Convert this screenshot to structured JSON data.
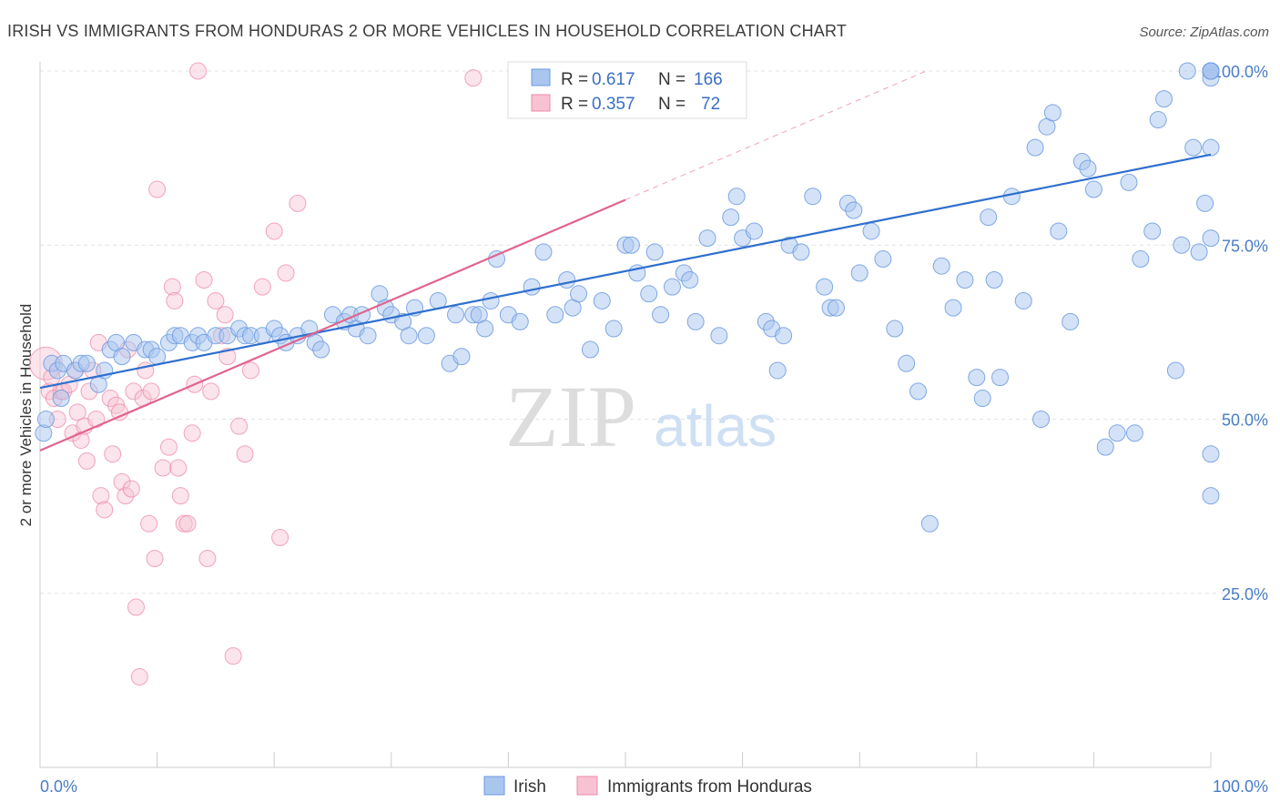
{
  "title": "IRISH VS IMMIGRANTS FROM HONDURAS 2 OR MORE VEHICLES IN HOUSEHOLD CORRELATION CHART",
  "source": "Source: ZipAtlas.com",
  "watermark": {
    "zip": "ZIP",
    "atlas": "atlas"
  },
  "y_axis_label": "2 or more Vehicles in Household",
  "legend_stats": [
    {
      "r_label": "R =",
      "r_value": "0.617",
      "n_label": "N =",
      "n_value": "166",
      "color": "#a9c6ef"
    },
    {
      "r_label": "R =",
      "r_value": "0.357",
      "n_label": "N =",
      "n_value": "72",
      "color": "#f7b9cc"
    }
  ],
  "bottom_legend": [
    "Irish",
    "Immigrants from Honduras"
  ],
  "chart_data": {
    "type": "scatter",
    "xlim": [
      0,
      100
    ],
    "ylim": [
      0,
      100
    ],
    "x_tick_labels": [
      "0.0%",
      "100.0%"
    ],
    "y_tick_labels": [
      "100.0%",
      "75.0%",
      "50.0%",
      "25.0%"
    ],
    "y_tick_values": [
      100,
      75,
      50,
      25
    ],
    "grid": true,
    "colors": {
      "irish": "#6b9be0",
      "irish_fill": "#a9c6ef",
      "honduras": "#ee88a8",
      "honduras_fill": "#f7c3d3",
      "irish_line": "#2e6fce",
      "honduras_line": "#e0648e"
    },
    "series": [
      {
        "name": "Irish",
        "trend": {
          "x": [
            0,
            100
          ],
          "y": [
            54.5,
            88
          ]
        },
        "points": [
          [
            0.3,
            48
          ],
          [
            0.5,
            50
          ],
          [
            1,
            58
          ],
          [
            1.5,
            57
          ],
          [
            1.8,
            53
          ],
          [
            2,
            58
          ],
          [
            3,
            57
          ],
          [
            3.5,
            58
          ],
          [
            4,
            58
          ],
          [
            5,
            55
          ],
          [
            5.5,
            57
          ],
          [
            6,
            60
          ],
          [
            6.5,
            61
          ],
          [
            7,
            59
          ],
          [
            8,
            61
          ],
          [
            9,
            60
          ],
          [
            9.5,
            60
          ],
          [
            10,
            59
          ],
          [
            11,
            61
          ],
          [
            11.5,
            62
          ],
          [
            12,
            62
          ],
          [
            13,
            61
          ],
          [
            13.5,
            62
          ],
          [
            14,
            61
          ],
          [
            15,
            62
          ],
          [
            16,
            62
          ],
          [
            17,
            63
          ],
          [
            17.5,
            62
          ],
          [
            18,
            62
          ],
          [
            19,
            62
          ],
          [
            20,
            63
          ],
          [
            20.5,
            62
          ],
          [
            21,
            61
          ],
          [
            22,
            62
          ],
          [
            23,
            63
          ],
          [
            23.5,
            61
          ],
          [
            24,
            60
          ],
          [
            25,
            65
          ],
          [
            26,
            64
          ],
          [
            26.5,
            65
          ],
          [
            27,
            63
          ],
          [
            27.5,
            65
          ],
          [
            28,
            62
          ],
          [
            29,
            68
          ],
          [
            29.5,
            66
          ],
          [
            30,
            65
          ],
          [
            31,
            64
          ],
          [
            31.5,
            62
          ],
          [
            32,
            66
          ],
          [
            33,
            62
          ],
          [
            34,
            67
          ],
          [
            35,
            58
          ],
          [
            35.5,
            65
          ],
          [
            36,
            59
          ],
          [
            37,
            65
          ],
          [
            37.5,
            65
          ],
          [
            38,
            63
          ],
          [
            38.5,
            67
          ],
          [
            39,
            73
          ],
          [
            40,
            65
          ],
          [
            41,
            64
          ],
          [
            42,
            69
          ],
          [
            43,
            74
          ],
          [
            44,
            65
          ],
          [
            45,
            70
          ],
          [
            45.5,
            66
          ],
          [
            46,
            68
          ],
          [
            47,
            60
          ],
          [
            48,
            67
          ],
          [
            49,
            63
          ],
          [
            50,
            75
          ],
          [
            50.5,
            75
          ],
          [
            51,
            71
          ],
          [
            52,
            68
          ],
          [
            52.5,
            74
          ],
          [
            53,
            65
          ],
          [
            54,
            69
          ],
          [
            55,
            71
          ],
          [
            55.5,
            70
          ],
          [
            56,
            64
          ],
          [
            57,
            76
          ],
          [
            58,
            62
          ],
          [
            59,
            79
          ],
          [
            59.5,
            82
          ],
          [
            60,
            76
          ],
          [
            61,
            77
          ],
          [
            62,
            64
          ],
          [
            62.5,
            63
          ],
          [
            63,
            57
          ],
          [
            63.5,
            62
          ],
          [
            64,
            75
          ],
          [
            65,
            74
          ],
          [
            66,
            82
          ],
          [
            67,
            69
          ],
          [
            67.5,
            66
          ],
          [
            68,
            66
          ],
          [
            69,
            81
          ],
          [
            69.5,
            80
          ],
          [
            70,
            71
          ],
          [
            71,
            77
          ],
          [
            72,
            73
          ],
          [
            73,
            63
          ],
          [
            74,
            58
          ],
          [
            75,
            54
          ],
          [
            76,
            35
          ],
          [
            77,
            72
          ],
          [
            78,
            66
          ],
          [
            79,
            70
          ],
          [
            80,
            56
          ],
          [
            80.5,
            53
          ],
          [
            81,
            79
          ],
          [
            81.5,
            70
          ],
          [
            82,
            56
          ],
          [
            83,
            82
          ],
          [
            84,
            67
          ],
          [
            85,
            89
          ],
          [
            85.5,
            50
          ],
          [
            86,
            92
          ],
          [
            86.5,
            94
          ],
          [
            87,
            77
          ],
          [
            88,
            64
          ],
          [
            89,
            87
          ],
          [
            89.5,
            86
          ],
          [
            90,
            83
          ],
          [
            91,
            46
          ],
          [
            92,
            48
          ],
          [
            93,
            84
          ],
          [
            93.5,
            48
          ],
          [
            94,
            73
          ],
          [
            95,
            77
          ],
          [
            95.5,
            93
          ],
          [
            96,
            96
          ],
          [
            97,
            57
          ],
          [
            97.5,
            75
          ],
          [
            98,
            100
          ],
          [
            98.5,
            89
          ],
          [
            99,
            74
          ],
          [
            99.5,
            81
          ],
          [
            100,
            100
          ],
          [
            100,
            76
          ],
          [
            100,
            100
          ],
          [
            100,
            89
          ],
          [
            100,
            45
          ],
          [
            100,
            39
          ],
          [
            100,
            100
          ],
          [
            100,
            100
          ],
          [
            100,
            100
          ],
          [
            100,
            99
          ],
          [
            100,
            100
          ],
          [
            100,
            100
          ]
        ]
      },
      {
        "name": "Immigrants from Honduras",
        "trend": {
          "x": [
            0,
            50
          ],
          "y": [
            45.5,
            81.5
          ]
        },
        "points": [
          [
            0.5,
            58
          ],
          [
            0.8,
            54
          ],
          [
            1,
            56
          ],
          [
            1.2,
            53
          ],
          [
            1.5,
            50
          ],
          [
            1.8,
            54
          ],
          [
            2,
            54
          ],
          [
            2.5,
            55
          ],
          [
            2.8,
            48
          ],
          [
            3,
            57
          ],
          [
            3.2,
            51
          ],
          [
            3.5,
            47
          ],
          [
            3.8,
            49
          ],
          [
            4,
            44
          ],
          [
            4.2,
            54
          ],
          [
            4.5,
            57
          ],
          [
            4.8,
            50
          ],
          [
            5,
            61
          ],
          [
            5.2,
            39
          ],
          [
            5.5,
            37
          ],
          [
            6,
            53
          ],
          [
            6.2,
            45
          ],
          [
            6.5,
            52
          ],
          [
            6.8,
            51
          ],
          [
            7,
            41
          ],
          [
            7.3,
            39
          ],
          [
            7.5,
            60
          ],
          [
            7.8,
            40
          ],
          [
            8,
            54
          ],
          [
            8.2,
            23
          ],
          [
            8.5,
            13
          ],
          [
            8.8,
            53
          ],
          [
            9,
            57
          ],
          [
            9.3,
            35
          ],
          [
            9.5,
            54
          ],
          [
            9.8,
            30
          ],
          [
            10,
            83
          ],
          [
            10.5,
            43
          ],
          [
            11,
            46
          ],
          [
            11.3,
            69
          ],
          [
            11.5,
            67
          ],
          [
            11.8,
            43
          ],
          [
            12,
            39
          ],
          [
            12.3,
            35
          ],
          [
            12.6,
            35
          ],
          [
            13,
            48
          ],
          [
            13.2,
            55
          ],
          [
            13.5,
            100
          ],
          [
            14,
            70
          ],
          [
            14.3,
            30
          ],
          [
            14.6,
            54
          ],
          [
            15,
            67
          ],
          [
            15.5,
            62
          ],
          [
            15.8,
            65
          ],
          [
            16,
            59
          ],
          [
            16.5,
            16
          ],
          [
            17,
            49
          ],
          [
            17.5,
            45
          ],
          [
            18,
            57
          ],
          [
            19,
            69
          ],
          [
            20,
            77
          ],
          [
            20.5,
            33
          ],
          [
            21,
            71
          ],
          [
            22,
            81
          ],
          [
            37,
            99
          ]
        ]
      }
    ]
  }
}
